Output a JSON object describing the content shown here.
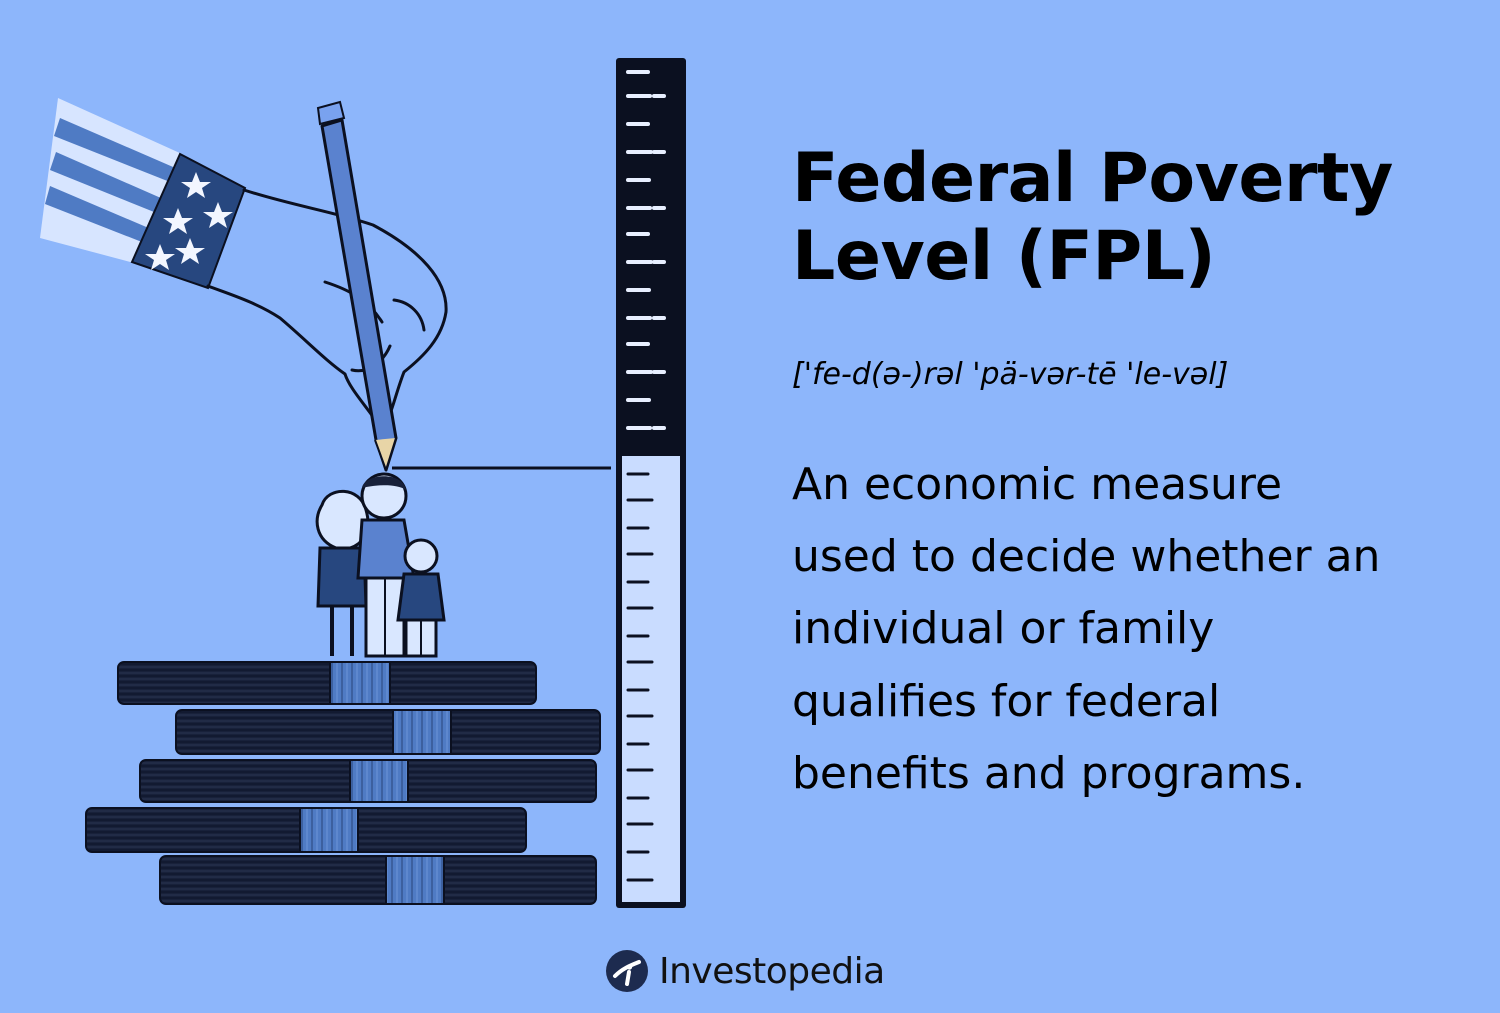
{
  "title": {
    "line1": "Federal Poverty",
    "line2": "Level (FPL)"
  },
  "pronunciation": "['fe-d(ə-)rəl 'pä-vər-tē 'le-vəl]",
  "definition": {
    "line1": "An economic measure",
    "line2": "used to decide whether an",
    "line3": "individual or family",
    "line4": "qualifies for federal",
    "line5": "benefits and programs."
  },
  "brand": {
    "name": "Investopedia"
  },
  "colors": {
    "background": "#8db6fb",
    "ink": "#0b1020",
    "stack_dark": "#18213a",
    "stripe_blue": "#4f7bc4",
    "light_blue": "#c9dcff",
    "pencil": "#5a82cf"
  },
  "icons": {
    "logo": "investopedia-logo-icon",
    "illustration": "poverty-measure-illustration"
  }
}
